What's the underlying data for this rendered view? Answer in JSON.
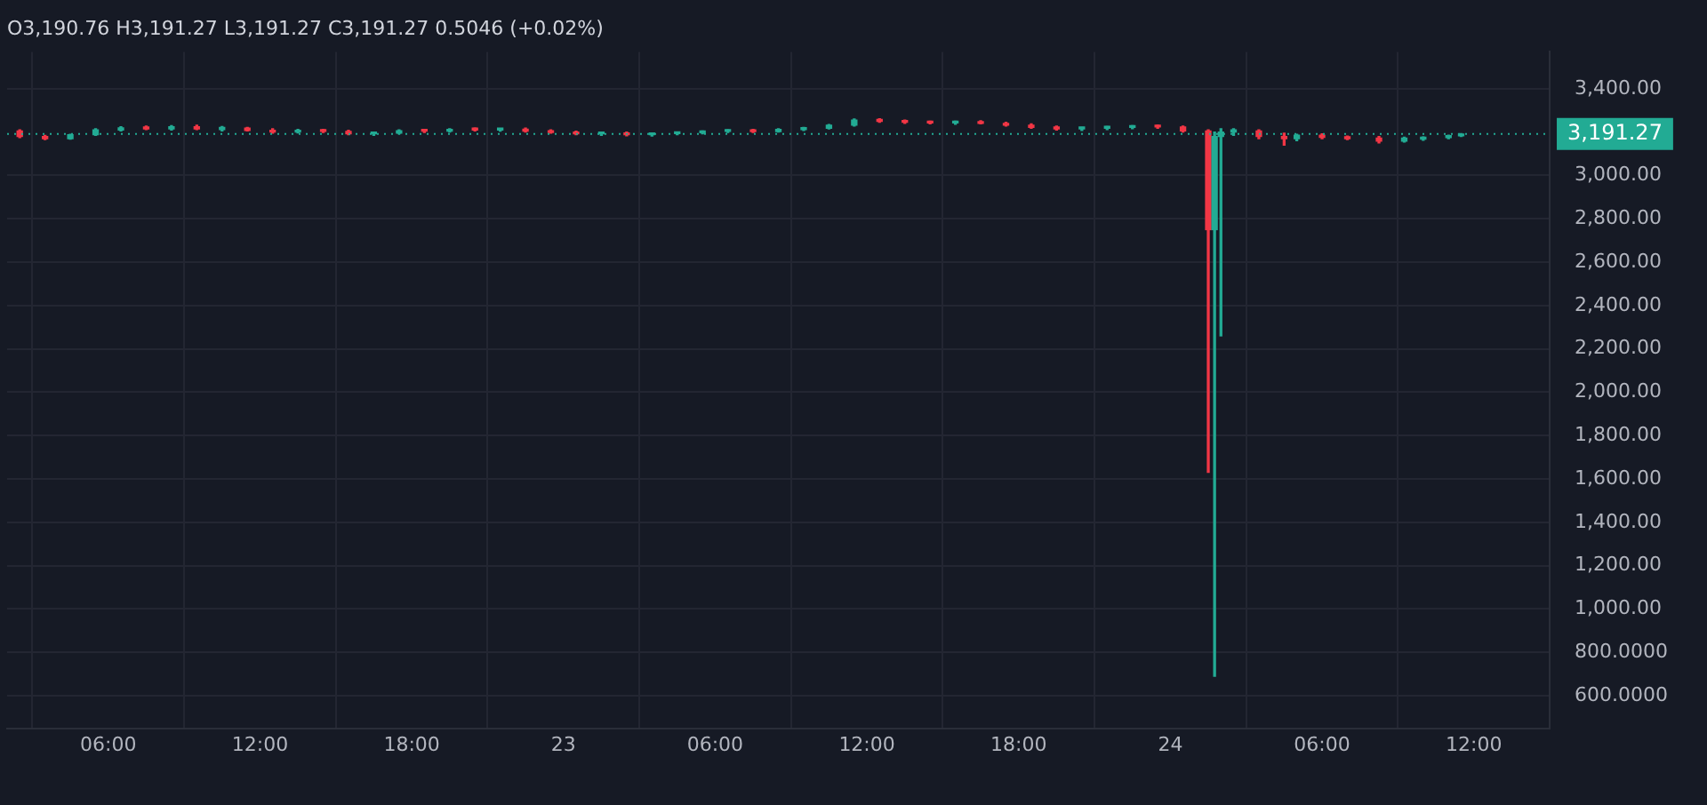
{
  "chart_data": {
    "type": "candlestick",
    "title": "O3,190.76 H3,191.27 L3,191.27 C3,191.27 0.5046 (+0.02%)",
    "x": [
      "--04-22T02:30",
      "--04-22T03:30",
      "--04-22T04:30",
      "--04-22T05:30",
      "--04-22T06:30",
      "--04-22T07:30",
      "--04-22T08:30",
      "--04-22T09:30",
      "--04-22T10:30",
      "--04-22T11:30",
      "--04-22T12:30",
      "--04-22T13:30",
      "--04-22T14:30",
      "--04-22T15:30",
      "--04-22T16:30",
      "--04-22T17:30",
      "--04-22T18:30",
      "--04-22T19:30",
      "--04-22T20:30",
      "--04-22T21:30",
      "--04-22T22:30",
      "--04-22T23:30",
      "--04-23T00:30",
      "--04-23T01:30",
      "--04-23T02:30",
      "--04-23T03:30",
      "--04-23T04:30",
      "--04-23T05:30",
      "--04-23T06:30",
      "--04-23T07:30",
      "--04-23T08:30",
      "--04-23T09:30",
      "--04-23T10:30",
      "--04-23T11:30",
      "--04-23T12:30",
      "--04-23T13:30",
      "--04-23T14:30",
      "--04-23T15:30",
      "--04-23T16:30",
      "--04-23T17:30",
      "--04-23T18:30",
      "--04-23T19:30",
      "--04-23T20:30",
      "--04-23T21:30",
      "--04-23T22:30",
      "--04-23T23:30",
      "--04-24T00:30",
      "--04-24T01:30",
      "--04-24T01:45",
      "--04-24T02:00",
      "--04-24T02:30",
      "--04-24T03:30",
      "--04-24T04:30",
      "--04-24T05:00",
      "--04-24T06:00",
      "--04-24T07:00",
      "--04-24T08:15",
      "--04-24T09:15",
      "--04-24T10:00",
      "--04-24T11:00",
      "--04-24T11:30"
    ],
    "ohlc": [
      [
        3205,
        3210,
        3175,
        3180
      ],
      [
        3180,
        3185,
        3165,
        3170
      ],
      [
        3170,
        3190,
        3168,
        3188
      ],
      [
        3188,
        3215,
        3185,
        3210
      ],
      [
        3210,
        3225,
        3205,
        3220
      ],
      [
        3220,
        3228,
        3212,
        3215
      ],
      [
        3215,
        3230,
        3210,
        3225
      ],
      [
        3225,
        3232,
        3212,
        3215
      ],
      [
        3212,
        3226,
        3205,
        3222
      ],
      [
        3218,
        3222,
        3205,
        3208
      ],
      [
        3208,
        3215,
        3195,
        3200
      ],
      [
        3200,
        3212,
        3196,
        3208
      ],
      [
        3208,
        3212,
        3198,
        3203
      ],
      [
        3203,
        3208,
        3188,
        3192
      ],
      [
        3192,
        3198,
        3185,
        3195
      ],
      [
        3195,
        3210,
        3192,
        3206
      ],
      [
        3206,
        3212,
        3198,
        3204
      ],
      [
        3204,
        3215,
        3200,
        3212
      ],
      [
        3212,
        3218,
        3205,
        3210
      ],
      [
        3210,
        3216,
        3204,
        3213
      ],
      [
        3213,
        3218,
        3200,
        3204
      ],
      [
        3204,
        3210,
        3195,
        3198
      ],
      [
        3198,
        3204,
        3188,
        3192
      ],
      [
        3192,
        3200,
        3185,
        3195
      ],
      [
        3195,
        3200,
        3183,
        3188
      ],
      [
        3188,
        3196,
        3182,
        3193
      ],
      [
        3193,
        3200,
        3188,
        3197
      ],
      [
        3197,
        3205,
        3192,
        3203
      ],
      [
        3203,
        3210,
        3198,
        3206
      ],
      [
        3206,
        3212,
        3198,
        3202
      ],
      [
        3202,
        3215,
        3200,
        3212
      ],
      [
        3212,
        3222,
        3208,
        3218
      ],
      [
        3218,
        3235,
        3215,
        3232
      ],
      [
        3232,
        3260,
        3228,
        3255
      ],
      [
        3255,
        3262,
        3245,
        3250
      ],
      [
        3250,
        3255,
        3240,
        3245
      ],
      [
        3245,
        3250,
        3238,
        3242
      ],
      [
        3242,
        3250,
        3236,
        3246
      ],
      [
        3246,
        3252,
        3238,
        3240
      ],
      [
        3240,
        3245,
        3228,
        3232
      ],
      [
        3232,
        3238,
        3218,
        3222
      ],
      [
        3222,
        3228,
        3210,
        3215
      ],
      [
        3215,
        3222,
        3208,
        3218
      ],
      [
        3218,
        3226,
        3212,
        3222
      ],
      [
        3222,
        3230,
        3216,
        3226
      ],
      [
        3226,
        3232,
        3218,
        3224
      ],
      [
        3224,
        3228,
        3200,
        3205
      ],
      [
        3205,
        3210,
        1630,
        2750
      ],
      [
        2750,
        3200,
        690,
        3180
      ],
      [
        3180,
        3215,
        2260,
        3200
      ],
      [
        3200,
        3215,
        3185,
        3210
      ],
      [
        3205,
        3210,
        3170,
        3180
      ],
      [
        3180,
        3195,
        3140,
        3170
      ],
      [
        3170,
        3190,
        3160,
        3186
      ],
      [
        3186,
        3192,
        3170,
        3176
      ],
      [
        3176,
        3182,
        3165,
        3170
      ],
      [
        3172,
        3180,
        3150,
        3158
      ],
      [
        3158,
        3176,
        3154,
        3172
      ],
      [
        3168,
        3178,
        3162,
        3175
      ],
      [
        3175,
        3186,
        3170,
        3183
      ],
      [
        3183,
        3193,
        3180,
        3191.27
      ]
    ],
    "colors": [
      "#f23645",
      "#f23645",
      "#22ab94",
      "#22ab94",
      "#22ab94",
      "#f23645",
      "#22ab94",
      "#f23645",
      "#22ab94",
      "#f23645",
      "#f23645",
      "#22ab94",
      "#f23645",
      "#f23645",
      "#22ab94",
      "#22ab94",
      "#f23645",
      "#22ab94",
      "#f23645",
      "#22ab94",
      "#f23645",
      "#f23645",
      "#f23645",
      "#22ab94",
      "#f23645",
      "#22ab94",
      "#22ab94",
      "#22ab94",
      "#22ab94",
      "#f23645",
      "#22ab94",
      "#22ab94",
      "#22ab94",
      "#22ab94",
      "#f23645",
      "#f23645",
      "#f23645",
      "#22ab94",
      "#f23645",
      "#f23645",
      "#f23645",
      "#f23645",
      "#22ab94",
      "#22ab94",
      "#22ab94",
      "#f23645",
      "#f23645",
      "#f23645",
      "#22ab94",
      "#22ab94",
      "#22ab94",
      "#f23645",
      "#f23645",
      "#22ab94",
      "#f23645",
      "#f23645",
      "#f23645",
      "#22ab94",
      "#22ab94",
      "#22ab94",
      "#22ab94"
    ],
    "xlim": [
      "--04-22T02:00",
      "--04-24T15:00"
    ],
    "xticks": [
      {
        "value": "--04-22T06:00",
        "label": "06:00"
      },
      {
        "value": "--04-22T12:00",
        "label": "12:00"
      },
      {
        "value": "--04-22T18:00",
        "label": "18:00"
      },
      {
        "value": "--04-23",
        "label": "23"
      },
      {
        "value": "--04-23T06:00",
        "label": "06:00"
      },
      {
        "value": "--04-23T12:00",
        "label": "12:00"
      },
      {
        "value": "--04-23T18:00",
        "label": "18:00"
      },
      {
        "value": "--04-24",
        "label": "24"
      },
      {
        "value": "--04-24T06:00",
        "label": "06:00"
      },
      {
        "value": "--04-24T12:00",
        "label": "12:00"
      }
    ],
    "ylim": [
      450,
      3570
    ],
    "yticks": [
      {
        "value": 600,
        "label": "600.0000"
      },
      {
        "value": 800,
        "label": "800.0000"
      },
      {
        "value": 1000,
        "label": "1,000.00"
      },
      {
        "value": 1200,
        "label": "1,200.00"
      },
      {
        "value": 1400,
        "label": "1,400.00"
      },
      {
        "value": 1600,
        "label": "1,600.00"
      },
      {
        "value": 1800,
        "label": "1,800.00"
      },
      {
        "value": 2000,
        "label": "2,000.00"
      },
      {
        "value": 2200,
        "label": "2,200.00"
      },
      {
        "value": 2400,
        "label": "2,400.00"
      },
      {
        "value": 2600,
        "label": "2,600.00"
      },
      {
        "value": 2800,
        "label": "2,800.00"
      },
      {
        "value": 3000,
        "label": "3,000.00"
      },
      {
        "value": 3400,
        "label": "3,400.00"
      }
    ],
    "grid": true,
    "ref_lines": [
      {
        "axis": "y",
        "value": 3191.27,
        "label": "3,191.27",
        "color": "#22ab94",
        "line_style": "dotted"
      }
    ]
  }
}
